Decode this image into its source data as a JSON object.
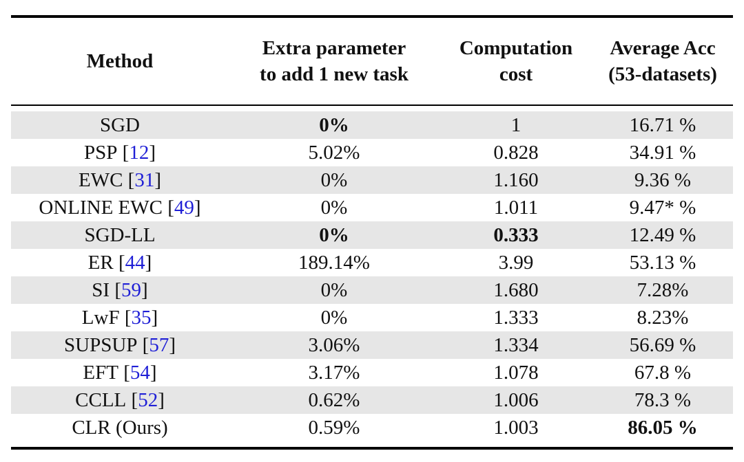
{
  "table": {
    "headers": {
      "method": "Method",
      "extra_param_line1": "Extra parameter",
      "extra_param_line2": "to add 1 new task",
      "computation_line1": "Computation",
      "computation_line2": "cost",
      "acc_line1": "Average Acc",
      "acc_line2": "(53-datasets)"
    },
    "rows": [
      {
        "method": "SGD",
        "cite": "",
        "extra": "0%",
        "extra_bold": true,
        "cost": "1",
        "cost_bold": false,
        "acc": "16.71 %",
        "acc_bold": false,
        "shaded": true
      },
      {
        "method": "PSP",
        "cite": "12",
        "extra": "5.02%",
        "extra_bold": false,
        "cost": "0.828",
        "cost_bold": false,
        "acc": "34.91 %",
        "acc_bold": false,
        "shaded": false
      },
      {
        "method": "EWC",
        "cite": "31",
        "extra": "0%",
        "extra_bold": false,
        "cost": "1.160",
        "cost_bold": false,
        "acc": "9.36 %",
        "acc_bold": false,
        "shaded": true
      },
      {
        "method": "ONLINE EWC",
        "cite": "49",
        "extra": "0%",
        "extra_bold": false,
        "cost": "1.011",
        "cost_bold": false,
        "acc": "9.47* %",
        "acc_bold": false,
        "shaded": false
      },
      {
        "method": "SGD-LL",
        "cite": "",
        "extra": "0%",
        "extra_bold": true,
        "cost": "0.333",
        "cost_bold": true,
        "acc": "12.49 %",
        "acc_bold": false,
        "shaded": true
      },
      {
        "method": "ER",
        "cite": "44",
        "extra": "189.14%",
        "extra_bold": false,
        "cost": "3.99",
        "cost_bold": false,
        "acc": "53.13 %",
        "acc_bold": false,
        "shaded": false
      },
      {
        "method": "SI",
        "cite": "59",
        "extra": "0%",
        "extra_bold": false,
        "cost": "1.680",
        "cost_bold": false,
        "acc": "7.28%",
        "acc_bold": false,
        "shaded": true
      },
      {
        "method": "LwF",
        "cite": "35",
        "extra": "0%",
        "extra_bold": false,
        "cost": "1.333",
        "cost_bold": false,
        "acc": "8.23%",
        "acc_bold": false,
        "shaded": false
      },
      {
        "method": "SUPSUP",
        "cite": "57",
        "extra": "3.06%",
        "extra_bold": false,
        "cost": "1.334",
        "cost_bold": false,
        "acc": "56.69 %",
        "acc_bold": false,
        "shaded": true
      },
      {
        "method": "EFT",
        "cite": "54",
        "extra": "3.17%",
        "extra_bold": false,
        "cost": "1.078",
        "cost_bold": false,
        "acc": "67.8 %",
        "acc_bold": false,
        "shaded": false
      },
      {
        "method": "CCLL",
        "cite": "52",
        "extra": "0.62%",
        "extra_bold": false,
        "cost": "1.006",
        "cost_bold": false,
        "acc": "78.3 %",
        "acc_bold": false,
        "shaded": true
      },
      {
        "method": "CLR (Ours)",
        "cite": "",
        "extra": "0.59%",
        "extra_bold": false,
        "cost": "1.003",
        "cost_bold": false,
        "acc": "86.05 %",
        "acc_bold": true,
        "shaded": false
      }
    ]
  },
  "colors": {
    "row_shade": "#e6e6e6",
    "citation_link": "#1f1fd6",
    "rule": "#000000"
  }
}
